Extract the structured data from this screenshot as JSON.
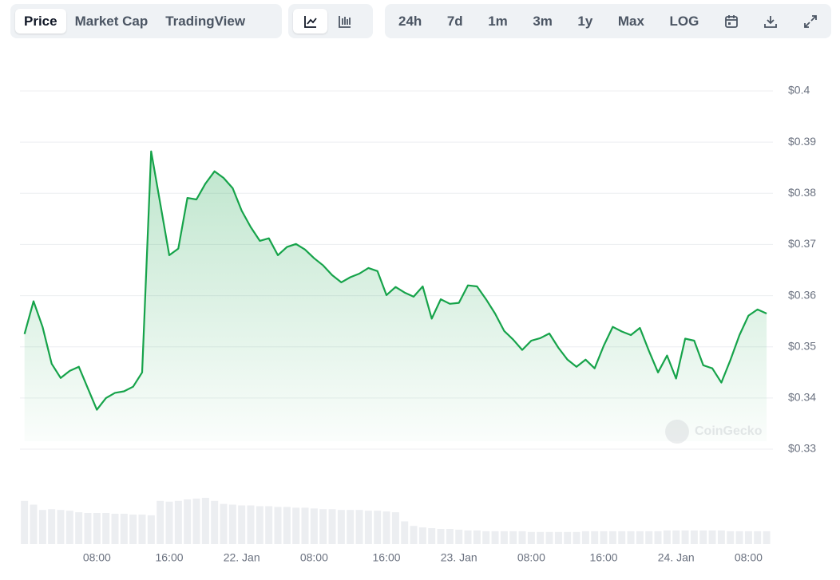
{
  "toolbar": {
    "tabs": [
      "Price",
      "Market Cap",
      "TradingView"
    ],
    "ranges": [
      "24h",
      "7d",
      "1m",
      "3m",
      "1y",
      "Max",
      "LOG"
    ]
  },
  "chart_data": {
    "type": "area",
    "watermark": "CoinGecko",
    "color": "#16a34a",
    "x": [
      0,
      1,
      2,
      3,
      4,
      5,
      6,
      7,
      8,
      9,
      10,
      11,
      12,
      13,
      14,
      15,
      16,
      17,
      18,
      19,
      20,
      21,
      22,
      23,
      24,
      25,
      26,
      27,
      28,
      29,
      30,
      31,
      32,
      33,
      34,
      35,
      36,
      37,
      38,
      39,
      40,
      41,
      42,
      43,
      44,
      45,
      46,
      47,
      48,
      49,
      50,
      51,
      52,
      53,
      54,
      55,
      56,
      57,
      58,
      59,
      60,
      61,
      62,
      63,
      64,
      65,
      66,
      67,
      68,
      69,
      70,
      71,
      72,
      73,
      74,
      75,
      76,
      77,
      78,
      79,
      80,
      81,
      82
    ],
    "values": [
      0.3525,
      0.3589,
      0.3539,
      0.3467,
      0.3439,
      0.3453,
      0.3461,
      0.3419,
      0.3377,
      0.34,
      0.341,
      0.3413,
      0.3422,
      0.345,
      0.3882,
      0.378,
      0.3679,
      0.3692,
      0.3791,
      0.3788,
      0.3819,
      0.3843,
      0.383,
      0.381,
      0.3766,
      0.3734,
      0.3707,
      0.3712,
      0.3679,
      0.3695,
      0.3701,
      0.369,
      0.3673,
      0.3659,
      0.364,
      0.3626,
      0.3636,
      0.3643,
      0.3654,
      0.3648,
      0.3601,
      0.3617,
      0.3606,
      0.3598,
      0.3618,
      0.3555,
      0.3593,
      0.3584,
      0.3586,
      0.362,
      0.3618,
      0.3593,
      0.3565,
      0.3531,
      0.3514,
      0.3494,
      0.3512,
      0.3517,
      0.3526,
      0.3498,
      0.3475,
      0.3461,
      0.3475,
      0.3458,
      0.3502,
      0.3539,
      0.353,
      0.3523,
      0.3537,
      0.3492,
      0.345,
      0.3483,
      0.3438,
      0.3516,
      0.3512,
      0.3464,
      0.3458,
      0.343,
      0.3474,
      0.3523,
      0.3561,
      0.3573,
      0.3565
    ],
    "volume": [
      57,
      52,
      45,
      46,
      45,
      44,
      42,
      41,
      41,
      41,
      40,
      40,
      39,
      39,
      38,
      57,
      56,
      57,
      59,
      60,
      61,
      57,
      53,
      52,
      51,
      51,
      50,
      50,
      49,
      49,
      48,
      48,
      47,
      46,
      46,
      45,
      45,
      45,
      44,
      44,
      43,
      42,
      30,
      24,
      22,
      21,
      20,
      20,
      19,
      18,
      18,
      17,
      17,
      17,
      17,
      17,
      16,
      16,
      16,
      16,
      16,
      16,
      17,
      17,
      17,
      17,
      17,
      17,
      17,
      17,
      17,
      18,
      18,
      18,
      18,
      18,
      18,
      18,
      17,
      17,
      17,
      17,
      17
    ],
    "xlim": [
      -0.5,
      82.7
    ],
    "xticks": [
      {
        "value": 8,
        "label": "08:00"
      },
      {
        "value": 16,
        "label": "16:00"
      },
      {
        "value": 24,
        "label": "22. Jan"
      },
      {
        "value": 32,
        "label": "08:00"
      },
      {
        "value": 40,
        "label": "16:00"
      },
      {
        "value": 48,
        "label": "23. Jan"
      },
      {
        "value": 56,
        "label": "08:00"
      },
      {
        "value": 64,
        "label": "16:00"
      },
      {
        "value": 72,
        "label": "24. Jan"
      },
      {
        "value": 80,
        "label": "08:00"
      }
    ],
    "ylim": [
      0.33,
      0.4
    ],
    "yticks": [
      {
        "value": 0.33,
        "label": "$0.33"
      },
      {
        "value": 0.34,
        "label": "$0.34"
      },
      {
        "value": 0.35,
        "label": "$0.35"
      },
      {
        "value": 0.36,
        "label": "$0.36"
      },
      {
        "value": 0.37,
        "label": "$0.37"
      },
      {
        "value": 0.38,
        "label": "$0.38"
      },
      {
        "value": 0.39,
        "label": "$0.39"
      },
      {
        "value": 0.4,
        "label": "$0.4"
      }
    ],
    "grid": true
  }
}
